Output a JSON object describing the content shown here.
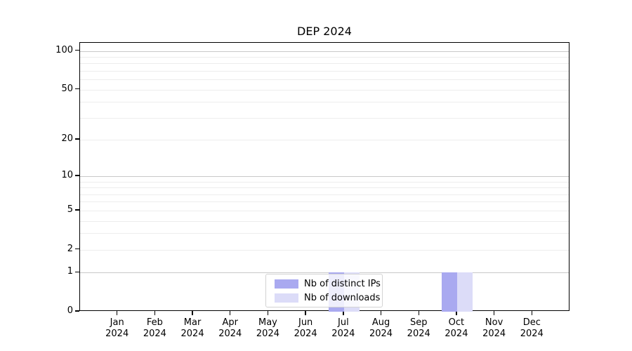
{
  "chart_data": {
    "type": "bar",
    "title": "DEP 2024",
    "categories": [
      "Jan",
      "Feb",
      "Mar",
      "Apr",
      "May",
      "Jun",
      "Jul",
      "Aug",
      "Sep",
      "Oct",
      "Nov",
      "Dec"
    ],
    "x_tick_year": "2024",
    "series": [
      {
        "name": "Nb of distinct IPs",
        "color": "#a9a9f0",
        "values": [
          0,
          0,
          0,
          0,
          0,
          0,
          1,
          0,
          0,
          1,
          0,
          0
        ]
      },
      {
        "name": "Nb of downloads",
        "color": "#dcdcf8",
        "values": [
          0,
          0,
          0,
          0,
          0,
          0,
          1,
          0,
          0,
          1,
          0,
          0
        ]
      }
    ],
    "yaxis": {
      "scale": "log1p",
      "tick_values": [
        100,
        50,
        20,
        10,
        5,
        2,
        1,
        0
      ],
      "tick_labels": [
        "100",
        "50",
        "20",
        "10",
        "5",
        "2",
        "1",
        "0"
      ],
      "major_gridlines": [
        1,
        10,
        100
      ],
      "minor_gridlines": [
        2,
        3,
        4,
        5,
        6,
        7,
        8,
        9,
        20,
        30,
        40,
        50,
        60,
        70,
        80,
        90
      ],
      "ylim": [
        0,
        115
      ],
      "grid": true
    },
    "legend": {
      "position": "bottom-center"
    },
    "colors": {
      "major_grid": "#c9c9c9",
      "minor_grid": "#ededed",
      "axis": "#000000",
      "background": "#ffffff"
    }
  }
}
